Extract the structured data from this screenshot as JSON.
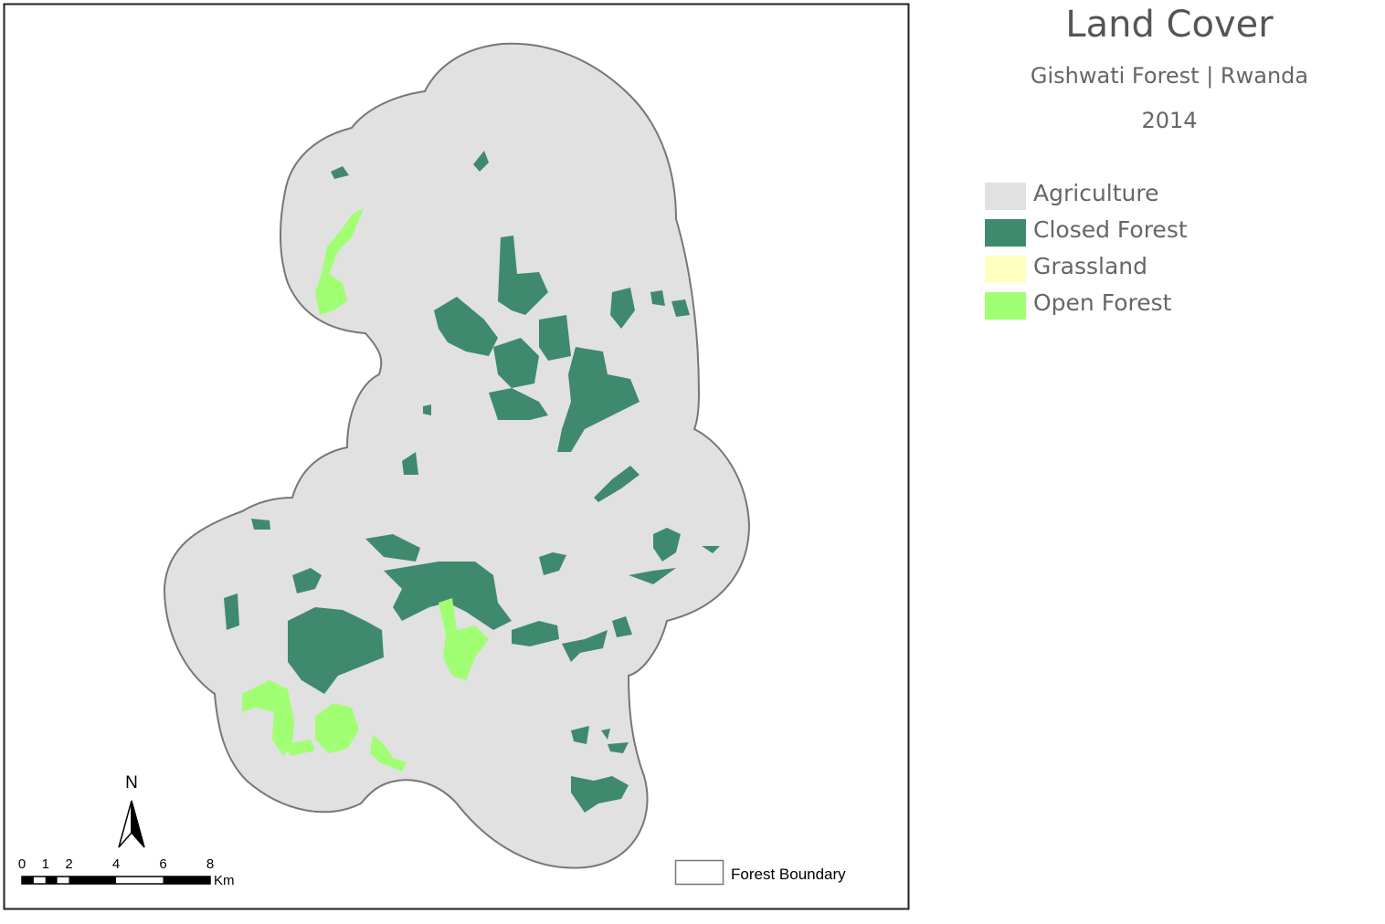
{
  "header": {
    "title": "Land Cover",
    "subtitle": "Gishwati Forest | Rwanda",
    "year": "2014"
  },
  "legend": [
    {
      "label": "Agriculture",
      "color": "#e1e1e1"
    },
    {
      "label": "Closed Forest",
      "color": "#3f8a6e"
    },
    {
      "label": "Grassland",
      "color": "#ffffc0"
    },
    {
      "label": "Open Forest",
      "color": "#a0ff73"
    }
  ],
  "north_arrow": {
    "label": "N"
  },
  "scale_bar": {
    "ticks": [
      0,
      1,
      2,
      4,
      6,
      8
    ],
    "unit": "Km"
  },
  "boundary_legend": {
    "label": "Forest Boundary"
  }
}
